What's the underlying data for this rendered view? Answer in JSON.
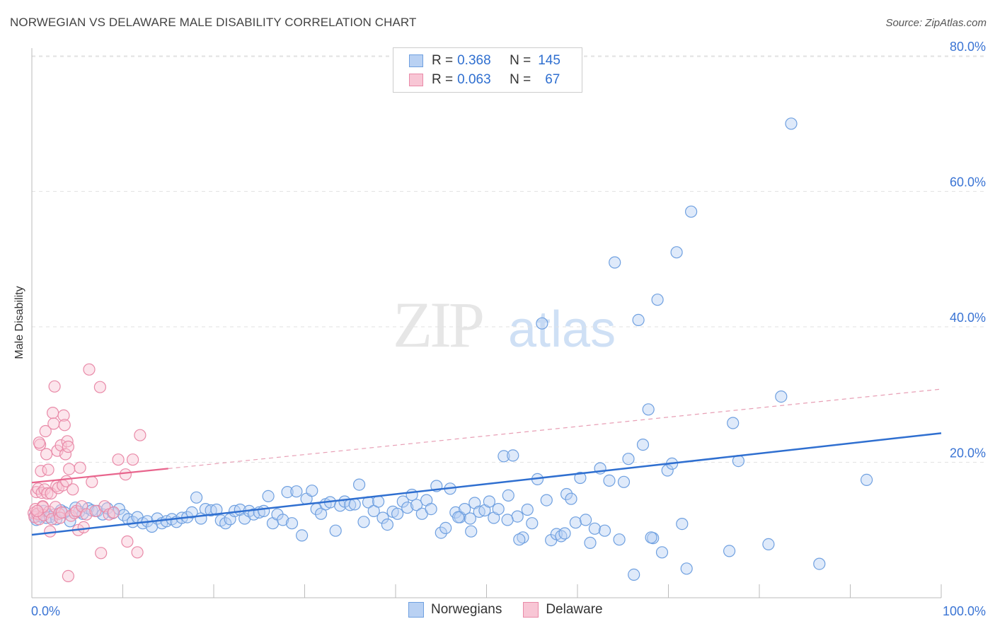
{
  "header": {
    "title": "NORWEGIAN VS DELAWARE MALE DISABILITY CORRELATION CHART",
    "source": "Source: ZipAtlas.com"
  },
  "watermark": {
    "zip": "ZIP",
    "atlas": "atlas"
  },
  "legend_top": {
    "rows": [
      {
        "r_label": "R = ",
        "r_value": "0.368",
        "n_label": "N = ",
        "n_value": "145",
        "color": "#6fa0e0",
        "fill": "#b9d1f3"
      },
      {
        "r_label": "R = ",
        "r_value": "0.063",
        "n_label": "N = ",
        "n_value": "67",
        "color": "#e98aa8",
        "fill": "#f8c6d5"
      }
    ]
  },
  "legend_bottom": {
    "items": [
      {
        "label": "Norwegians",
        "color": "#6fa0e0",
        "fill": "#b9d1f3"
      },
      {
        "label": "Delaware",
        "color": "#e98aa8",
        "fill": "#f8c6d5"
      }
    ]
  },
  "chart_data": {
    "type": "scatter",
    "title": "NORWEGIAN VS DELAWARE MALE DISABILITY CORRELATION CHART",
    "ylabel": "Male Disability",
    "xlabel": "",
    "xlim": [
      0,
      100
    ],
    "ylim": [
      0,
      80
    ],
    "x_tick_labels": [
      "0.0%",
      "100.0%"
    ],
    "y_ticks": [
      20,
      40,
      60,
      80
    ],
    "y_tick_labels": [
      "20.0%",
      "40.0%",
      "60.0%",
      "80.0%"
    ],
    "grid": true,
    "legend_position": "top-center",
    "series": [
      {
        "name": "Norwegians",
        "color": "#6fa0e0",
        "fill": "#b9d1f3",
        "trend": {
          "x": [
            0,
            100
          ],
          "y": [
            9.3,
            24.3
          ],
          "style": "solid"
        },
        "points": [
          [
            0.3,
            12.0
          ],
          [
            0.5,
            11.5
          ],
          [
            0.8,
            12.4
          ],
          [
            1.0,
            12.0
          ],
          [
            1.3,
            12.8
          ],
          [
            1.6,
            11.8
          ],
          [
            2.0,
            11.9
          ],
          [
            2.5,
            12.3
          ],
          [
            2.7,
            11.6
          ],
          [
            3.2,
            12.9
          ],
          [
            3.6,
            12.6
          ],
          [
            4.2,
            11.3
          ],
          [
            4.8,
            13.3
          ],
          [
            5.2,
            12.7
          ],
          [
            5.6,
            12.4
          ],
          [
            6.2,
            13.2
          ],
          [
            6.6,
            12.9
          ],
          [
            7.2,
            12.8
          ],
          [
            7.8,
            12.3
          ],
          [
            8.3,
            13.2
          ],
          [
            8.9,
            12.5
          ],
          [
            9.6,
            13.1
          ],
          [
            10.1,
            12.2
          ],
          [
            10.6,
            11.6
          ],
          [
            11.1,
            11.2
          ],
          [
            11.6,
            11.9
          ],
          [
            12.2,
            11.0
          ],
          [
            12.7,
            11.3
          ],
          [
            13.2,
            10.5
          ],
          [
            13.8,
            11.7
          ],
          [
            14.3,
            11.0
          ],
          [
            14.8,
            11.3
          ],
          [
            15.4,
            11.6
          ],
          [
            15.9,
            11.2
          ],
          [
            16.5,
            11.8
          ],
          [
            17.1,
            11.9
          ],
          [
            17.6,
            12.6
          ],
          [
            18.1,
            14.8
          ],
          [
            18.6,
            11.7
          ],
          [
            19.1,
            13.1
          ],
          [
            19.7,
            12.9
          ],
          [
            20.3,
            13.0
          ],
          [
            20.8,
            11.4
          ],
          [
            21.3,
            11.0
          ],
          [
            21.8,
            11.6
          ],
          [
            22.3,
            12.8
          ],
          [
            22.9,
            13.0
          ],
          [
            23.4,
            11.7
          ],
          [
            23.9,
            12.8
          ],
          [
            24.4,
            12.3
          ],
          [
            25.0,
            12.6
          ],
          [
            25.5,
            12.8
          ],
          [
            26.0,
            15.0
          ],
          [
            26.5,
            11.0
          ],
          [
            27.0,
            12.3
          ],
          [
            27.6,
            11.5
          ],
          [
            28.1,
            15.6
          ],
          [
            28.6,
            11.0
          ],
          [
            29.1,
            15.7
          ],
          [
            29.7,
            9.2
          ],
          [
            30.2,
            14.6
          ],
          [
            30.8,
            15.8
          ],
          [
            31.3,
            13.1
          ],
          [
            31.8,
            12.4
          ],
          [
            32.3,
            13.8
          ],
          [
            32.8,
            14.1
          ],
          [
            33.4,
            9.9
          ],
          [
            33.9,
            13.6
          ],
          [
            34.4,
            14.2
          ],
          [
            35.0,
            13.7
          ],
          [
            35.5,
            13.8
          ],
          [
            36.0,
            16.7
          ],
          [
            36.5,
            11.2
          ],
          [
            37.0,
            14.1
          ],
          [
            37.6,
            12.8
          ],
          [
            38.1,
            14.2
          ],
          [
            38.6,
            11.8
          ],
          [
            39.1,
            10.8
          ],
          [
            39.7,
            12.7
          ],
          [
            40.2,
            12.4
          ],
          [
            40.8,
            14.2
          ],
          [
            41.3,
            13.3
          ],
          [
            41.8,
            15.2
          ],
          [
            42.3,
            13.7
          ],
          [
            42.9,
            12.4
          ],
          [
            43.4,
            14.4
          ],
          [
            43.9,
            13.1
          ],
          [
            44.5,
            16.5
          ],
          [
            45.0,
            9.6
          ],
          [
            45.5,
            10.3
          ],
          [
            46.0,
            16.1
          ],
          [
            46.6,
            12.6
          ],
          [
            47.1,
            11.9
          ],
          [
            47.6,
            13.1
          ],
          [
            48.2,
            11.7
          ],
          [
            48.7,
            14.0
          ],
          [
            49.2,
            12.7
          ],
          [
            49.8,
            12.9
          ],
          [
            50.3,
            14.2
          ],
          [
            50.8,
            11.8
          ],
          [
            51.3,
            13.1
          ],
          [
            51.9,
            20.9
          ],
          [
            52.4,
            15.1
          ],
          [
            52.9,
            21.0
          ],
          [
            53.4,
            12.0
          ],
          [
            54.0,
            8.9
          ],
          [
            54.5,
            13.0
          ],
          [
            55.0,
            11.0
          ],
          [
            55.6,
            17.5
          ],
          [
            56.1,
            40.5
          ],
          [
            56.6,
            14.4
          ],
          [
            57.1,
            8.5
          ],
          [
            57.7,
            9.4
          ],
          [
            58.2,
            9.1
          ],
          [
            58.8,
            15.3
          ],
          [
            59.3,
            14.6
          ],
          [
            59.8,
            11.1
          ],
          [
            60.3,
            17.7
          ],
          [
            60.9,
            11.5
          ],
          [
            61.4,
            8.1
          ],
          [
            61.9,
            10.2
          ],
          [
            62.5,
            19.1
          ],
          [
            63.0,
            9.9
          ],
          [
            63.5,
            17.3
          ],
          [
            64.1,
            49.5
          ],
          [
            64.6,
            8.6
          ],
          [
            65.1,
            17.1
          ],
          [
            65.6,
            20.5
          ],
          [
            66.2,
            3.4
          ],
          [
            66.7,
            41.0
          ],
          [
            67.2,
            22.6
          ],
          [
            67.8,
            27.8
          ],
          [
            68.3,
            8.8
          ],
          [
            68.8,
            44.0
          ],
          [
            69.3,
            6.7
          ],
          [
            69.9,
            18.8
          ],
          [
            70.4,
            19.8
          ],
          [
            70.9,
            51.0
          ],
          [
            71.5,
            10.9
          ],
          [
            72.0,
            4.3
          ],
          [
            72.5,
            57.0
          ],
          [
            77.1,
            25.8
          ],
          [
            77.7,
            20.2
          ],
          [
            81.0,
            7.9
          ],
          [
            82.4,
            29.7
          ],
          [
            83.5,
            70.0
          ],
          [
            86.6,
            5.0
          ],
          [
            91.8,
            17.4
          ],
          [
            76.7,
            6.9
          ],
          [
            68.1,
            8.9
          ],
          [
            48.3,
            9.8
          ],
          [
            58.6,
            9.5
          ],
          [
            53.6,
            8.6
          ],
          [
            46.9,
            11.9
          ],
          [
            52.3,
            11.5
          ]
        ]
      },
      {
        "name": "Delaware",
        "color": "#e98aa8",
        "fill": "#f8c6d5",
        "trend": {
          "x": [
            0,
            100
          ],
          "y": [
            17.0,
            30.8
          ],
          "style": "solid 0-15, dashed beyond"
        },
        "points": [
          [
            0.2,
            12.5
          ],
          [
            0.3,
            11.9
          ],
          [
            0.4,
            13.1
          ],
          [
            0.5,
            15.6
          ],
          [
            0.6,
            12.4
          ],
          [
            0.7,
            16.1
          ],
          [
            0.8,
            11.6
          ],
          [
            0.9,
            22.6
          ],
          [
            1.0,
            18.7
          ],
          [
            1.1,
            15.5
          ],
          [
            1.2,
            13.5
          ],
          [
            1.3,
            12.2
          ],
          [
            1.4,
            16.0
          ],
          [
            1.5,
            24.6
          ],
          [
            1.6,
            21.2
          ],
          [
            1.7,
            15.4
          ],
          [
            1.8,
            18.9
          ],
          [
            1.9,
            12.7
          ],
          [
            2.0,
            9.8
          ],
          [
            2.1,
            15.4
          ],
          [
            2.2,
            11.6
          ],
          [
            2.3,
            27.3
          ],
          [
            2.4,
            25.7
          ],
          [
            2.5,
            31.2
          ],
          [
            2.6,
            13.4
          ],
          [
            2.7,
            16.5
          ],
          [
            2.8,
            21.7
          ],
          [
            2.9,
            16.2
          ],
          [
            3.0,
            12.4
          ],
          [
            3.1,
            11.8
          ],
          [
            3.2,
            22.5
          ],
          [
            3.3,
            12.6
          ],
          [
            3.4,
            16.6
          ],
          [
            3.5,
            26.9
          ],
          [
            3.6,
            25.5
          ],
          [
            3.7,
            21.2
          ],
          [
            3.8,
            17.2
          ],
          [
            3.9,
            23.1
          ],
          [
            4.0,
            22.3
          ],
          [
            4.1,
            19.0
          ],
          [
            4.3,
            12.1
          ],
          [
            4.5,
            16.0
          ],
          [
            4.7,
            12.5
          ],
          [
            4.9,
            12.8
          ],
          [
            5.1,
            10.0
          ],
          [
            5.3,
            19.2
          ],
          [
            5.5,
            13.5
          ],
          [
            5.7,
            10.4
          ],
          [
            6.0,
            12.3
          ],
          [
            6.3,
            33.7
          ],
          [
            6.6,
            17.1
          ],
          [
            7.0,
            12.8
          ],
          [
            7.5,
            31.1
          ],
          [
            8.0,
            13.5
          ],
          [
            8.5,
            12.3
          ],
          [
            9.0,
            12.6
          ],
          [
            9.5,
            20.4
          ],
          [
            10.3,
            18.2
          ],
          [
            10.5,
            8.3
          ],
          [
            11.1,
            20.4
          ],
          [
            11.6,
            6.7
          ],
          [
            11.9,
            24.0
          ],
          [
            7.6,
            6.6
          ],
          [
            4.0,
            3.2
          ],
          [
            1.2,
            13.4
          ],
          [
            0.8,
            22.9
          ],
          [
            0.6,
            12.8
          ]
        ]
      }
    ]
  }
}
